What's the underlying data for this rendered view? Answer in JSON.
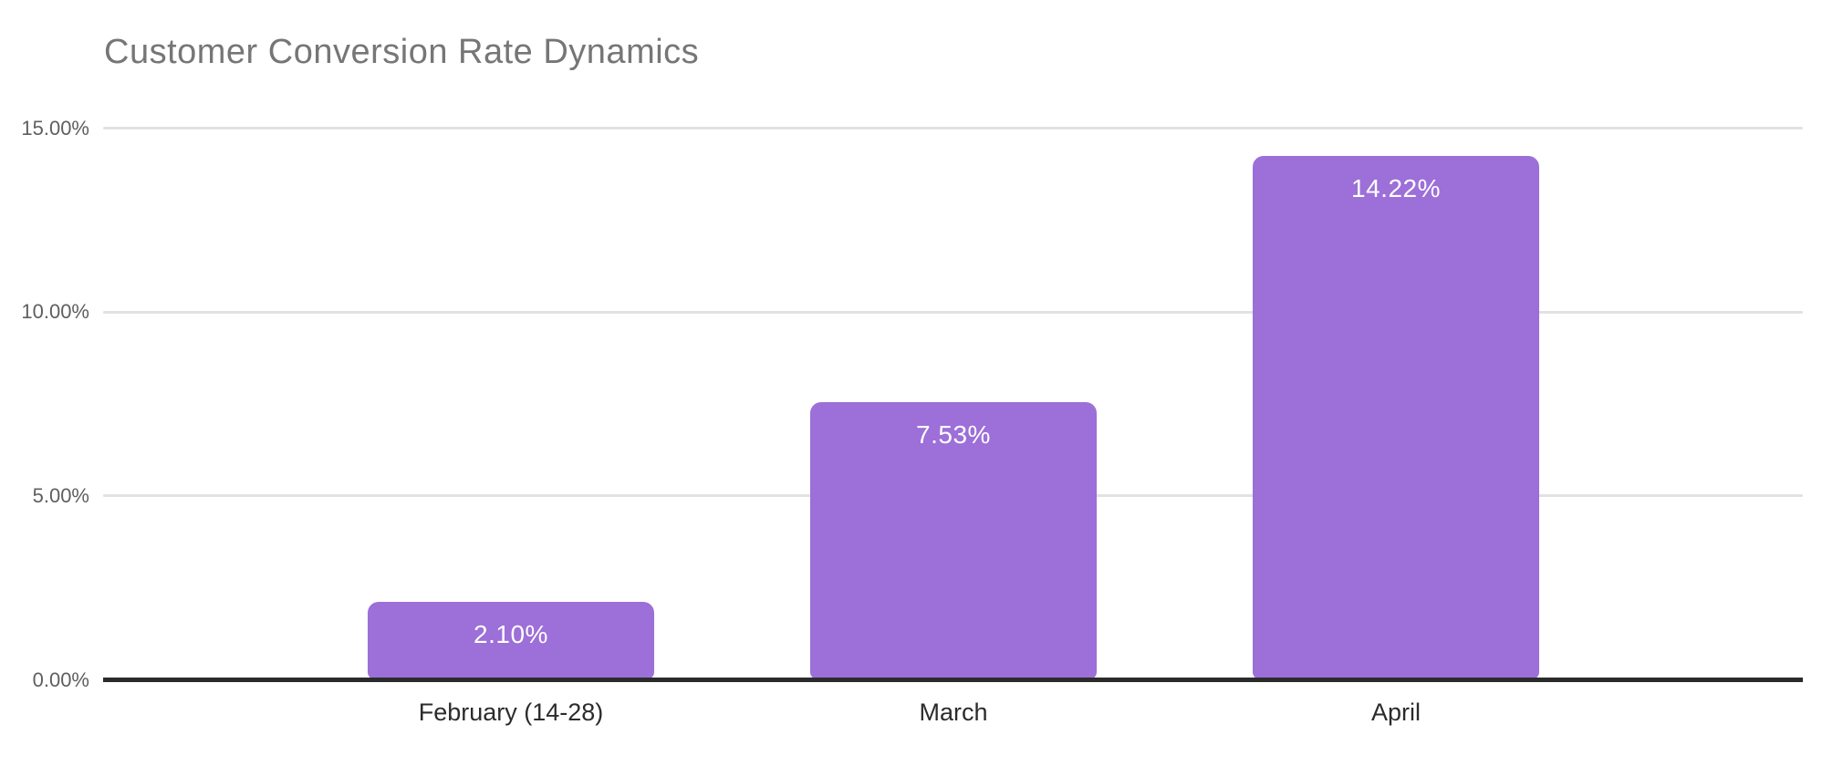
{
  "chart_data": {
    "type": "bar",
    "title": "Customer Conversion Rate Dynamics",
    "categories": [
      "February (14-28)",
      "March",
      "April"
    ],
    "values": [
      2.1,
      7.53,
      14.22
    ],
    "bar_labels": [
      "2.10%",
      "7.53%",
      "14.22%"
    ],
    "y_ticks": [
      {
        "value": 15,
        "label": "15.00%"
      },
      {
        "value": 10,
        "label": "10.00%"
      },
      {
        "value": 5,
        "label": "5.00%"
      },
      {
        "value": 0,
        "label": "0.00%"
      }
    ],
    "ylim": [
      0,
      15
    ],
    "xlabel": "",
    "ylabel": "",
    "grid": true,
    "legend": "none",
    "colors": {
      "bar": "#9d6fd8",
      "bar_label": "#ffffff",
      "title": "#767676",
      "y_tick_label": "#5f5f5f",
      "x_tick_label": "#2b2b2b",
      "gridline": "#e2e2e2",
      "axis_line": "#2b2b2b",
      "background": "#ffffff"
    }
  }
}
